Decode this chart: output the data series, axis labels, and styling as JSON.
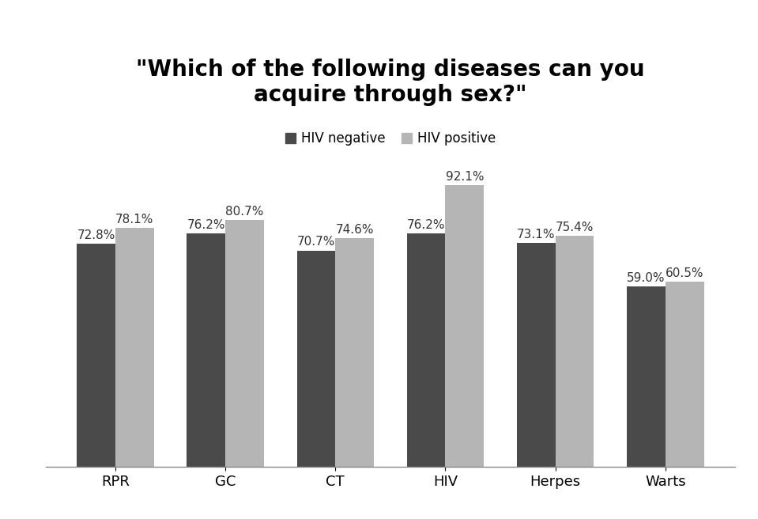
{
  "title": "\"Which of the following diseases can you\nacquire through sex?\"",
  "categories": [
    "RPR",
    "GC",
    "CT",
    "HIV",
    "Herpes",
    "Warts"
  ],
  "hiv_negative": [
    72.8,
    76.2,
    70.7,
    76.2,
    73.1,
    59.0
  ],
  "hiv_positive": [
    78.1,
    80.7,
    74.6,
    92.1,
    75.4,
    60.5
  ],
  "bar_color_negative": "#4a4a4a",
  "bar_color_positive": "#b5b5b5",
  "legend_labels": [
    "HIV negative",
    "HIV positive"
  ],
  "background_color": "#ffffff",
  "title_fontsize": 20,
  "label_fontsize": 12,
  "tick_fontsize": 13,
  "bar_width": 0.35,
  "ylim": [
    0,
    105
  ],
  "annotation_fontsize": 11
}
